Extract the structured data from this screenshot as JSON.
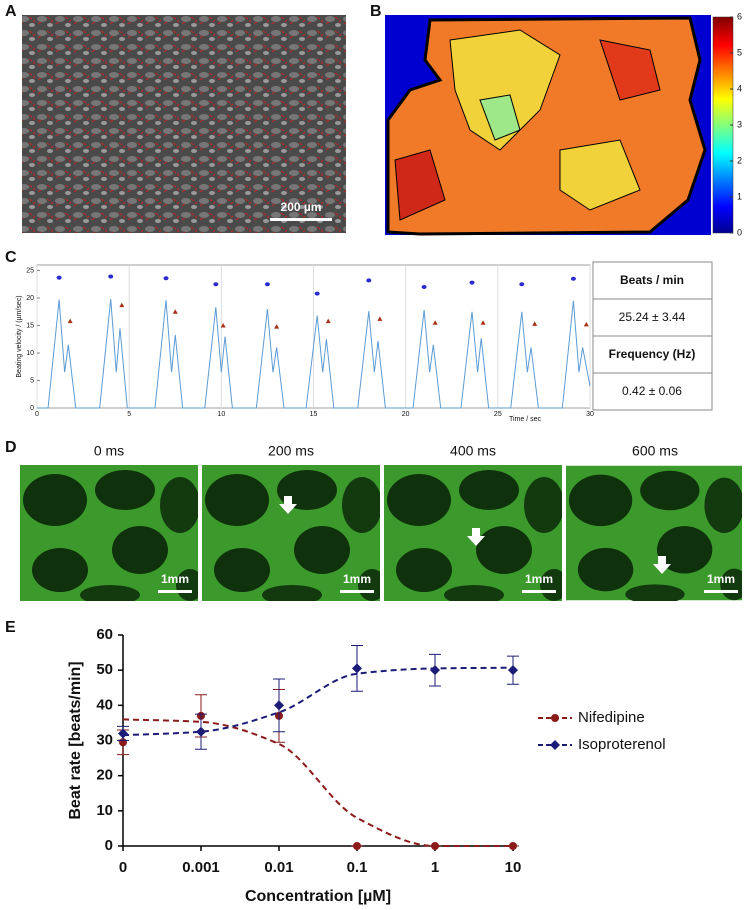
{
  "panel_labels": [
    "A",
    "B",
    "C",
    "D",
    "E"
  ],
  "panel_a": {
    "scale_bar": "200 µm"
  },
  "panel_c_table": {
    "rows": [
      "Beats / min",
      "25.24 ± 3.44",
      "Frequency (Hz)",
      "0.42 ± 0.06"
    ]
  },
  "panel_d": {
    "frames": [
      "0 ms",
      "200 ms",
      "400 ms",
      "600 ms"
    ],
    "scale_bar": "1mm"
  },
  "chart_data": [
    {
      "type": "colorbar",
      "ylim": [
        0,
        6
      ],
      "yticks": [
        0,
        1,
        2,
        3,
        4,
        5,
        6
      ]
    },
    {
      "type": "line",
      "x_label": "Time / sec",
      "y_label": "Beating velocity / (µm/sec)",
      "xlim": [
        0,
        30
      ],
      "xticks": [
        0,
        5,
        10,
        15,
        20,
        25,
        30
      ],
      "ylim": [
        0,
        26
      ],
      "yticks": [
        0,
        5,
        10,
        15,
        20,
        25
      ],
      "grid": true,
      "series": [
        {
          "marker": "none",
          "color": "#5b9bd5",
          "x": [
            0,
            0.6,
            1.2,
            1.5,
            1.7,
            2.1,
            3.4,
            4.0,
            4.3,
            4.5,
            4.9,
            6.4,
            7.0,
            7.3,
            7.5,
            7.9,
            9.1,
            9.7,
            10.0,
            10.2,
            10.6,
            11.9,
            12.5,
            12.8,
            13.0,
            13.4,
            14.6,
            15.2,
            15.5,
            15.7,
            16.1,
            17.4,
            18.0,
            18.3,
            18.5,
            18.9,
            20.4,
            21.0,
            21.3,
            21.5,
            21.9,
            23.0,
            23.6,
            23.9,
            24.1,
            24.5,
            25.7,
            26.3,
            26.6,
            26.8,
            27.2,
            28.5,
            29.1,
            29.4,
            29.6,
            30
          ],
          "values": [
            0,
            0,
            19.7,
            6.5,
            11.5,
            0,
            0,
            19.8,
            6.5,
            14.5,
            0,
            0,
            19.6,
            6.5,
            13.3,
            0,
            0,
            18.3,
            6.5,
            13.0,
            0,
            0,
            18.0,
            6.5,
            11.0,
            0,
            0,
            16.8,
            6.5,
            12.5,
            0,
            0,
            17.6,
            6.5,
            12.2,
            0,
            0,
            17.8,
            6.5,
            11.5,
            0,
            0,
            17.5,
            6.5,
            12.7,
            0,
            0,
            17.5,
            6.5,
            11.0,
            0,
            0,
            19.5,
            6.5,
            11.0,
            4
          ]
        },
        {
          "marker": "circle",
          "color": "#2a2ad0",
          "x": [
            1.2,
            4.0,
            7.0,
            9.7,
            12.5,
            15.2,
            18.0,
            21.0,
            23.6,
            26.3,
            29.1
          ],
          "values": [
            23.7,
            23.9,
            23.6,
            22.5,
            22.5,
            20.8,
            23.2,
            22.0,
            22.8,
            22.5,
            23.5
          ]
        },
        {
          "marker": "triangle",
          "color": "#a83218",
          "x": [
            1.8,
            4.6,
            7.5,
            10.1,
            13.0,
            15.8,
            18.6,
            21.6,
            24.2,
            27.0,
            29.8
          ],
          "values": [
            15.8,
            18.7,
            17.5,
            15.0,
            14.8,
            15.8,
            16.2,
            15.5,
            15.5,
            15.3,
            15.2
          ]
        }
      ]
    },
    {
      "type": "line",
      "x_label": "Concentration [µM]",
      "y_label": "Beat rate [beats/min]",
      "categories": [
        "0",
        "0.001",
        "0.01",
        "0.1",
        "1",
        "10"
      ],
      "ylim": [
        0,
        60
      ],
      "yticks": [
        0,
        10,
        20,
        30,
        40,
        50,
        60
      ],
      "legend": "right",
      "series": [
        {
          "name": "Nifedipine",
          "color": "#8b1a1a",
          "marker": "circle",
          "values": [
            29.5,
            37,
            37,
            0,
            0,
            0
          ],
          "errors": [
            3.5,
            6,
            7.5,
            0,
            0,
            0
          ],
          "fit": [
            36,
            35.3,
            29,
            8,
            0,
            0
          ]
        },
        {
          "name": "Isoproterenol",
          "color": "#1c1c78",
          "marker": "diamond",
          "values": [
            32,
            32.5,
            40,
            50.5,
            50,
            50
          ],
          "errors": [
            2,
            5,
            7.5,
            6.5,
            4.5,
            4
          ],
          "fit": [
            31.5,
            32.5,
            38,
            49,
            50.5,
            50.7
          ]
        }
      ]
    }
  ]
}
